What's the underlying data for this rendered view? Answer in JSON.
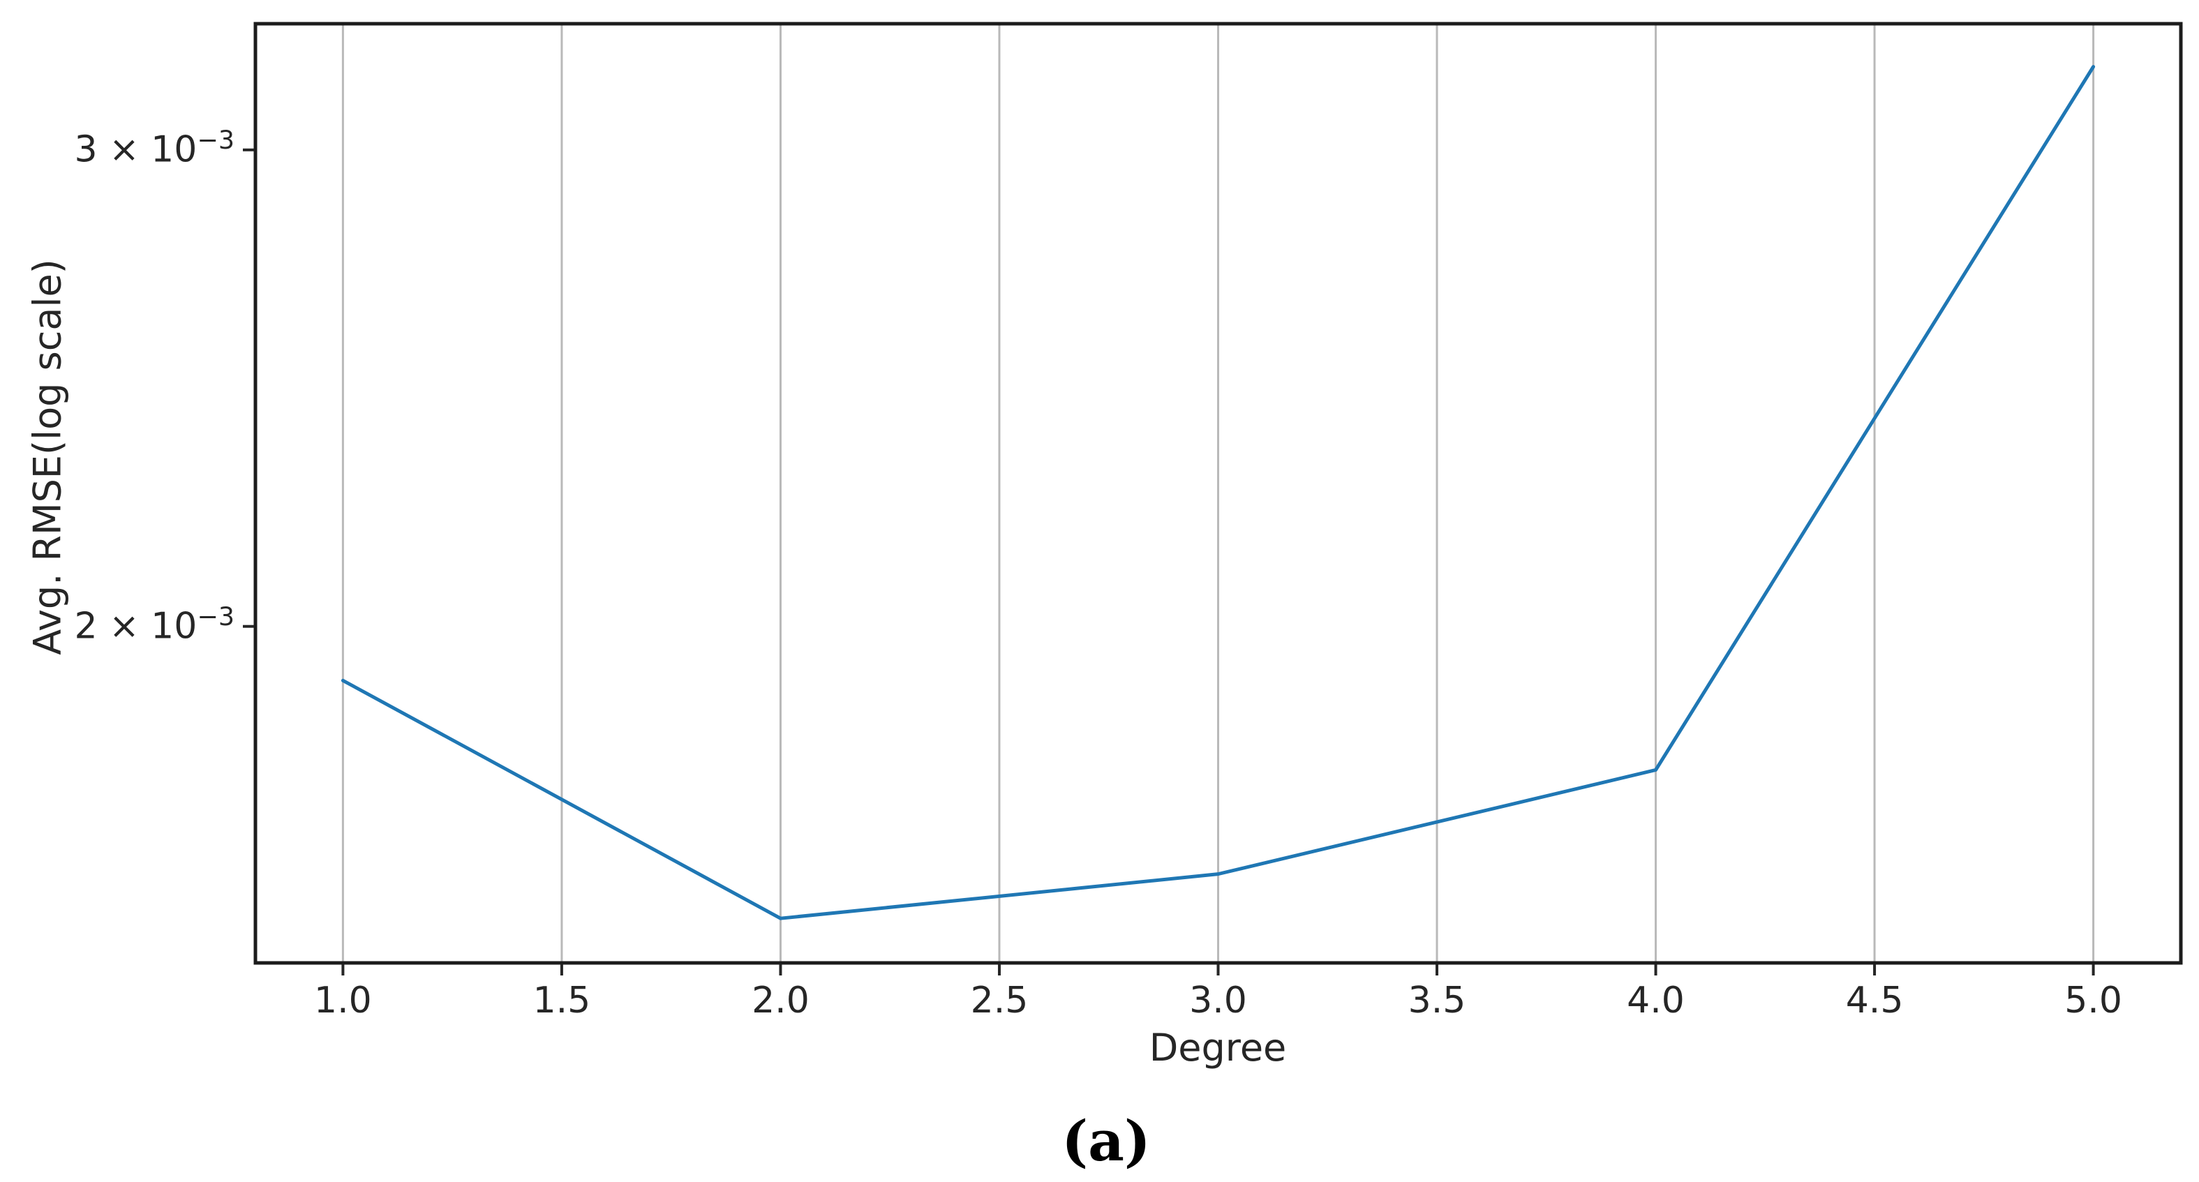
{
  "figure": {
    "background": "#ffffff",
    "caption": "(a)"
  },
  "chart_data": {
    "type": "line",
    "title": "",
    "xlabel": "Degree",
    "ylabel": "Avg. RMSE(log scale)",
    "x": [
      1.0,
      2.0,
      3.0,
      4.0,
      5.0
    ],
    "series": [
      {
        "name": "Avg. RMSE",
        "values": [
          0.00191,
          0.00156,
          0.00162,
          0.00177,
          0.00322
        ]
      }
    ],
    "yscale": "log",
    "xlim": [
      0.8,
      5.2
    ],
    "ylim": [
      0.001502,
      0.00334
    ],
    "xticks": {
      "values": [
        1.0,
        1.5,
        2.0,
        2.5,
        3.0,
        3.5,
        4.0,
        4.5,
        5.0
      ],
      "labels": [
        "1.0",
        "1.5",
        "2.0",
        "2.5",
        "3.0",
        "3.5",
        "4.0",
        "4.5",
        "5.0"
      ]
    },
    "yticks": [
      {
        "value": 0.003,
        "mantissa": "3 × 10",
        "exponent": "−3"
      },
      {
        "value": 0.002,
        "mantissa": "2 × 10",
        "exponent": "−3"
      }
    ],
    "grid": "vertical-only",
    "legend": "none",
    "line_color": "#1f77b4",
    "grid_color": "#b9b9b9",
    "spine_color": "#1c1c1c",
    "tick_color": "#262626",
    "text_color": "#262626"
  }
}
